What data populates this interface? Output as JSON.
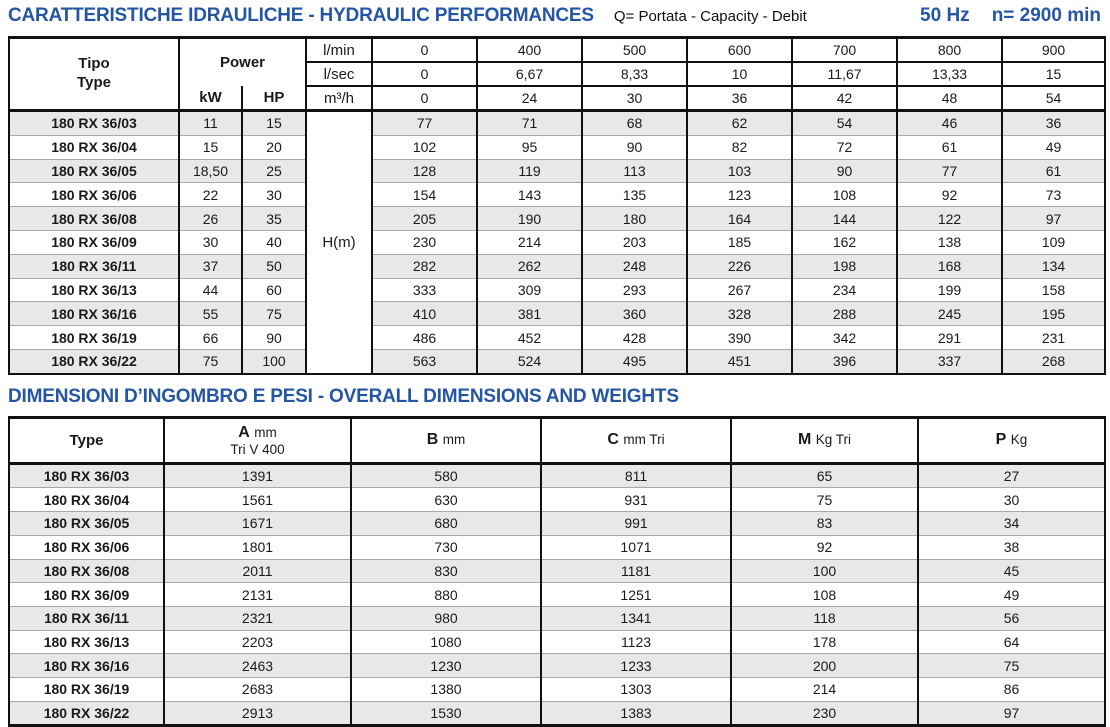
{
  "header": {
    "title": "CARATTERISTICHE IDRAULICHE - HYDRAULIC PERFORMANCES",
    "capacity_note": "Q= Portata - Capacity - Debit",
    "frequency": "50 Hz",
    "speed": "n= 2900 min"
  },
  "hydraulic_table": {
    "type_header_line1": "Tipo",
    "type_header_line2": "Type",
    "power_header": "Power",
    "kw_label": "kW",
    "hp_label": "HP",
    "head_label": "H(m)",
    "flow_rows": [
      {
        "unit": "l/min",
        "values": [
          "0",
          "400",
          "500",
          "600",
          "700",
          "800",
          "900"
        ]
      },
      {
        "unit": "l/sec",
        "values": [
          "0",
          "6,67",
          "8,33",
          "10",
          "11,67",
          "13,33",
          "15"
        ]
      },
      {
        "unit": "m³/h",
        "values": [
          "0",
          "24",
          "30",
          "36",
          "42",
          "48",
          "54"
        ]
      }
    ],
    "rows": [
      {
        "type": "180 RX 36/03",
        "kw": "11",
        "hp": "15",
        "h": [
          "77",
          "71",
          "68",
          "62",
          "54",
          "46",
          "36"
        ]
      },
      {
        "type": "180 RX 36/04",
        "kw": "15",
        "hp": "20",
        "h": [
          "102",
          "95",
          "90",
          "82",
          "72",
          "61",
          "49"
        ]
      },
      {
        "type": "180 RX 36/05",
        "kw": "18,50",
        "hp": "25",
        "h": [
          "128",
          "119",
          "113",
          "103",
          "90",
          "77",
          "61"
        ]
      },
      {
        "type": "180 RX 36/06",
        "kw": "22",
        "hp": "30",
        "h": [
          "154",
          "143",
          "135",
          "123",
          "108",
          "92",
          "73"
        ]
      },
      {
        "type": "180 RX 36/08",
        "kw": "26",
        "hp": "35",
        "h": [
          "205",
          "190",
          "180",
          "164",
          "144",
          "122",
          "97"
        ]
      },
      {
        "type": "180 RX 36/09",
        "kw": "30",
        "hp": "40",
        "h": [
          "230",
          "214",
          "203",
          "185",
          "162",
          "138",
          "109"
        ]
      },
      {
        "type": "180 RX 36/11",
        "kw": "37",
        "hp": "50",
        "h": [
          "282",
          "262",
          "248",
          "226",
          "198",
          "168",
          "134"
        ]
      },
      {
        "type": "180 RX 36/13",
        "kw": "44",
        "hp": "60",
        "h": [
          "333",
          "309",
          "293",
          "267",
          "234",
          "199",
          "158"
        ]
      },
      {
        "type": "180 RX 36/16",
        "kw": "55",
        "hp": "75",
        "h": [
          "410",
          "381",
          "360",
          "328",
          "288",
          "245",
          "195"
        ]
      },
      {
        "type": "180 RX 36/19",
        "kw": "66",
        "hp": "90",
        "h": [
          "486",
          "452",
          "428",
          "390",
          "342",
          "291",
          "231"
        ]
      },
      {
        "type": "180 RX 36/22",
        "kw": "75",
        "hp": "100",
        "h": [
          "563",
          "524",
          "495",
          "451",
          "396",
          "337",
          "268"
        ]
      }
    ]
  },
  "dimensions_table": {
    "title": "DIMENSIONI D’INGOMBRO E PESI - OVERALL DIMENSIONS AND WEIGHTS",
    "type_header": "Type",
    "columns": [
      {
        "letter": "A",
        "unit": "mm",
        "sub": "Tri V 400"
      },
      {
        "letter": "B",
        "unit": "mm",
        "sub": ""
      },
      {
        "letter": "C",
        "unit": "mm Tri",
        "sub": ""
      },
      {
        "letter": "M",
        "unit": "Kg Tri",
        "sub": ""
      },
      {
        "letter": "P",
        "unit": "Kg",
        "sub": ""
      }
    ],
    "rows": [
      {
        "type": "180 RX 36/03",
        "values": [
          "1391",
          "580",
          "811",
          "65",
          "27"
        ]
      },
      {
        "type": "180 RX 36/04",
        "values": [
          "1561",
          "630",
          "931",
          "75",
          "30"
        ]
      },
      {
        "type": "180 RX 36/05",
        "values": [
          "1671",
          "680",
          "991",
          "83",
          "34"
        ]
      },
      {
        "type": "180 RX 36/06",
        "values": [
          "1801",
          "730",
          "1071",
          "92",
          "38"
        ]
      },
      {
        "type": "180 RX 36/08",
        "values": [
          "2011",
          "830",
          "1181",
          "100",
          "45"
        ]
      },
      {
        "type": "180 RX 36/09",
        "values": [
          "2131",
          "880",
          "1251",
          "108",
          "49"
        ]
      },
      {
        "type": "180 RX 36/11",
        "values": [
          "2321",
          "980",
          "1341",
          "118",
          "56"
        ]
      },
      {
        "type": "180 RX 36/13",
        "values": [
          "2203",
          "1080",
          "1123",
          "178",
          "64"
        ]
      },
      {
        "type": "180 RX 36/16",
        "values": [
          "2463",
          "1230",
          "1233",
          "200",
          "75"
        ]
      },
      {
        "type": "180 RX 36/19",
        "values": [
          "2683",
          "1380",
          "1303",
          "214",
          "86"
        ]
      },
      {
        "type": "180 RX 36/22",
        "values": [
          "2913",
          "1530",
          "1383",
          "230",
          "97"
        ]
      }
    ]
  },
  "colors": {
    "accent_blue": "#2456a5",
    "stripe_gray": "#e8e8e8",
    "border_black": "#111111",
    "row_line_gray": "#a8a8a8"
  }
}
